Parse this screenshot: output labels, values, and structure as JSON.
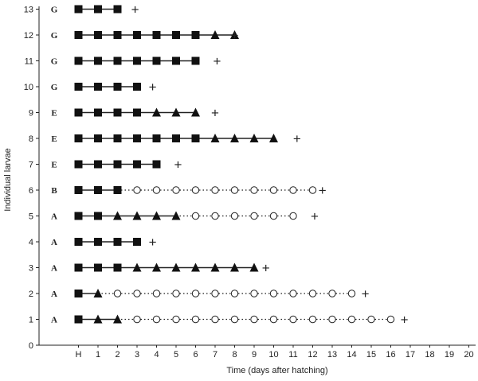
{
  "chart_data": {
    "type": "scatter",
    "xlabel": "Time (days after hatching)",
    "ylabel": "Individual larvae",
    "x_ticks": [
      "H",
      "1",
      "2",
      "3",
      "4",
      "5",
      "6",
      "7",
      "8",
      "9",
      "10",
      "11",
      "12",
      "13",
      "14",
      "15",
      "16",
      "17",
      "18",
      "19",
      "20"
    ],
    "y_ticks": [
      "0",
      "1",
      "2",
      "3",
      "4",
      "5",
      "6",
      "7",
      "8",
      "9",
      "10",
      "11",
      "12",
      "13"
    ],
    "xlim": [
      -1,
      20
    ],
    "ylim": [
      0,
      13
    ],
    "marker_legend": {
      "square": "filled square",
      "triangle": "filled triangle",
      "circle": "open circle",
      "death": "+"
    },
    "larvae": [
      {
        "id": 1,
        "group": "A",
        "markers": [
          "square",
          "triangle",
          "triangle",
          "circle",
          "circle",
          "circle",
          "circle",
          "circle",
          "circle",
          "circle",
          "circle",
          "circle",
          "circle",
          "circle",
          "circle",
          "circle",
          "circle"
        ],
        "death": 16.7
      },
      {
        "id": 2,
        "group": "A",
        "markers": [
          "square",
          "triangle",
          "circle",
          "circle",
          "circle",
          "circle",
          "circle",
          "circle",
          "circle",
          "circle",
          "circle",
          "circle",
          "circle",
          "circle",
          "circle"
        ],
        "death": 14.7
      },
      {
        "id": 3,
        "group": "A",
        "markers": [
          "square",
          "square",
          "square",
          "triangle",
          "triangle",
          "triangle",
          "triangle",
          "triangle",
          "triangle",
          "triangle"
        ],
        "death": 9.6
      },
      {
        "id": 4,
        "group": "A",
        "markers": [
          "square",
          "square",
          "square",
          "square"
        ],
        "death": 3.8
      },
      {
        "id": 5,
        "group": "A",
        "markers": [
          "square",
          "square",
          "triangle",
          "triangle",
          "triangle",
          "triangle",
          "circle",
          "circle",
          "circle",
          "circle",
          "circle",
          "circle"
        ],
        "death": 12.1
      },
      {
        "id": 6,
        "group": "B",
        "markers": [
          "square",
          "square",
          "square",
          "circle",
          "circle",
          "circle",
          "circle",
          "circle",
          "circle",
          "circle",
          "circle",
          "circle",
          "circle"
        ],
        "death": 12.5
      },
      {
        "id": 7,
        "group": "E",
        "markers": [
          "square",
          "square",
          "square",
          "square",
          "square"
        ],
        "death": 5.1
      },
      {
        "id": 8,
        "group": "E",
        "markers": [
          "square",
          "square",
          "square",
          "square",
          "square",
          "square",
          "square",
          "triangle",
          "triangle",
          "triangle",
          "triangle"
        ],
        "death": 11.2
      },
      {
        "id": 9,
        "group": "E",
        "markers": [
          "square",
          "square",
          "square",
          "square",
          "triangle",
          "triangle",
          "triangle"
        ],
        "death": 7.0
      },
      {
        "id": 10,
        "group": "G",
        "markers": [
          "square",
          "square",
          "square",
          "square"
        ],
        "death": 3.8
      },
      {
        "id": 11,
        "group": "G",
        "markers": [
          "square",
          "square",
          "square",
          "square",
          "square",
          "square",
          "square"
        ],
        "death": 7.1
      },
      {
        "id": 12,
        "group": "G",
        "markers": [
          "square",
          "square",
          "square",
          "square",
          "square",
          "square",
          "square",
          "triangle",
          "triangle"
        ],
        "death": 8.0
      },
      {
        "id": 13,
        "group": "G",
        "markers": [
          "square",
          "square",
          "square"
        ],
        "death": 2.9
      }
    ]
  }
}
